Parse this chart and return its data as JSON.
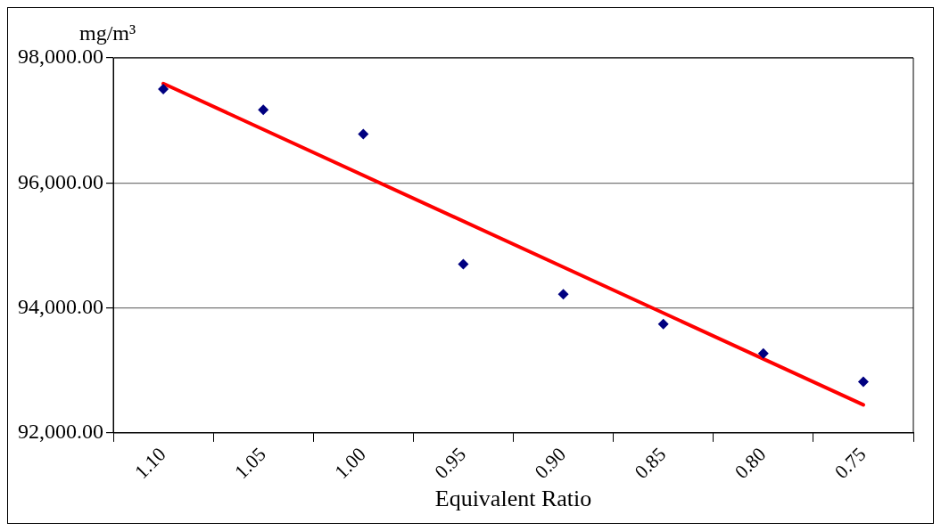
{
  "chart_data": {
    "type": "scatter",
    "xlabel": "Equivalent Ratio",
    "ylabel": "mg/m³",
    "categories": [
      "1.10",
      "1.05",
      "1.00",
      "0.95",
      "0.90",
      "0.85",
      "0.80",
      "0.75"
    ],
    "series": [
      {
        "color": "#000080",
        "marker": "diamond",
        "values": [
          97500,
          97170,
          96780,
          94700,
          94220,
          93740,
          93270,
          92820
        ]
      },
      {
        "type": "line",
        "color": "#ff0000",
        "marker": "none",
        "x": [
          "1.10",
          "0.75"
        ],
        "values": [
          97590,
          92450
        ]
      }
    ],
    "ylim": [
      92000,
      98000
    ],
    "yticks": [
      {
        "value": 92000,
        "label": "92,000.00"
      },
      {
        "value": 94000,
        "label": "94,000.00"
      },
      {
        "value": 96000,
        "label": "96,000.00"
      },
      {
        "value": 98000,
        "label": "98,000.00"
      }
    ],
    "grid": "y"
  }
}
